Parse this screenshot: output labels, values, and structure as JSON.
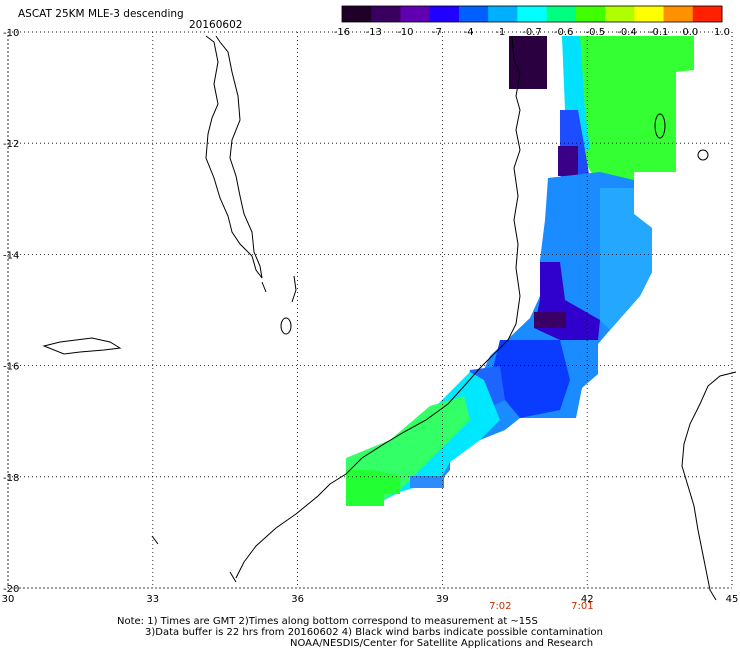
{
  "header": {
    "title": "ASCAT 25KM MLE-3 descending",
    "date": "20160602"
  },
  "colorbar": {
    "labels": [
      "-16",
      "-13",
      "-10",
      "-7",
      "-4",
      "-1",
      "-0.7",
      "-0.6",
      "-0.5",
      "-0.4",
      "-0.1",
      "0.0",
      "1.0"
    ],
    "colors": [
      "#1e0028",
      "#3a0060",
      "#6000b0",
      "#2000ff",
      "#0060ff",
      "#00b0ff",
      "#00ffff",
      "#00ff80",
      "#40ff00",
      "#b0ff00",
      "#ffff00",
      "#ff9000",
      "#ff2000"
    ]
  },
  "axes": {
    "x_ticks": [
      "30",
      "33",
      "36",
      "39",
      "42",
      "45"
    ],
    "y_ticks": [
      "-10",
      "-12",
      "-14",
      "-16",
      "-18",
      "-20"
    ],
    "lon_range": [
      30,
      45
    ],
    "lat_range": [
      -20,
      -10
    ]
  },
  "times": [
    {
      "label": "7:02",
      "lon": 40.2
    },
    {
      "label": "7:01",
      "lon": 41.9
    }
  ],
  "notes": {
    "line1": "Note: 1) Times are GMT 2)Times along bottom correspond to measurement at ~15S",
    "line2": "3)Data buffer is 22 hrs from 20160602 4) Black wind barbs indicate possible contamination",
    "line3": "NOAA/NESDIS/Center for Satellite Applications and Research"
  },
  "style": {
    "time_color": "#c83000"
  }
}
